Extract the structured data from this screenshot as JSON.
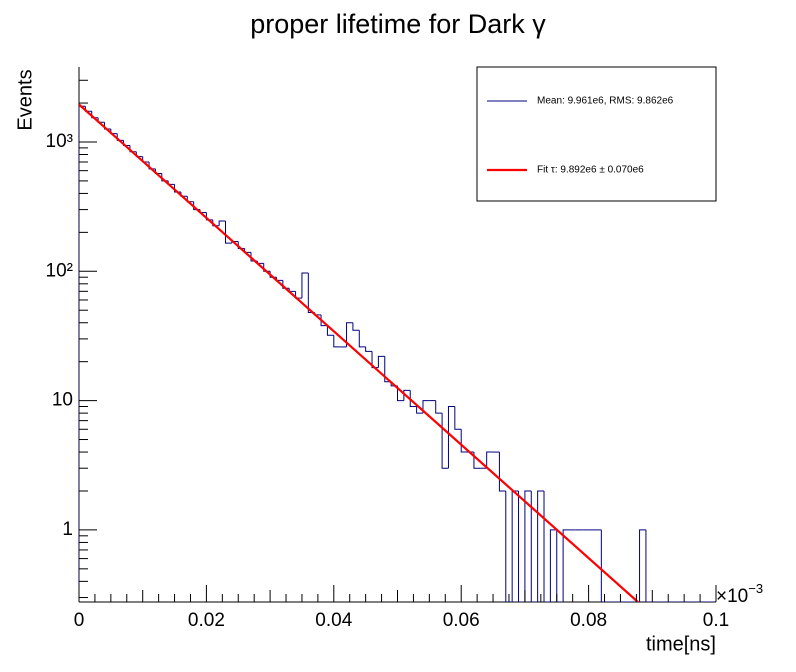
{
  "chart_data": {
    "type": "histogram",
    "title": "proper lifetime for Dark γ",
    "xlabel": "time[ns]",
    "ylabel": "Events",
    "x_multiplier_base": "×10",
    "x_multiplier_exp": "−3",
    "log_y": true,
    "xlim": [
      0,
      0.1
    ],
    "ylim": [
      0.277,
      3800
    ],
    "xticks": [
      0,
      0.02,
      0.04,
      0.06,
      0.08,
      0.1
    ],
    "xminor_ticks": [
      0.0025,
      0.005,
      0.0075,
      0.01,
      0.0125,
      0.015,
      0.0175,
      0.0225,
      0.025,
      0.0275,
      0.03,
      0.0325,
      0.035,
      0.0375,
      0.0425,
      0.045,
      0.0475,
      0.05,
      0.0525,
      0.055,
      0.0575,
      0.0625,
      0.065,
      0.0675,
      0.07,
      0.0725,
      0.075,
      0.0775,
      0.0825,
      0.085,
      0.0875,
      0.09,
      0.0925,
      0.095,
      0.0975
    ],
    "yticks": [
      1,
      10,
      {
        "value": 100,
        "label": "10²"
      },
      {
        "value": 1000,
        "label": "10³"
      }
    ],
    "yminor_ticks": [
      0.3,
      0.4,
      0.5,
      0.6,
      0.7,
      0.8,
      0.9,
      2,
      3,
      4,
      5,
      6,
      7,
      8,
      9,
      20,
      30,
      40,
      50,
      60,
      70,
      80,
      90,
      200,
      300,
      400,
      500,
      600,
      700,
      800,
      900,
      2000,
      3000
    ],
    "bins": [
      0,
      0.001,
      0.002,
      0.003,
      0.004,
      0.005,
      0.006,
      0.007,
      0.008,
      0.009,
      0.01,
      0.011,
      0.012,
      0.013,
      0.014,
      0.015,
      0.016,
      0.017,
      0.018,
      0.019,
      0.02,
      0.021,
      0.022,
      0.023,
      0.024,
      0.025,
      0.026,
      0.027,
      0.028,
      0.029,
      0.03,
      0.031,
      0.032,
      0.033,
      0.034,
      0.035,
      0.036,
      0.037,
      0.038,
      0.039,
      0.04,
      0.041,
      0.042,
      0.043,
      0.044,
      0.045,
      0.046,
      0.047,
      0.048,
      0.049,
      0.05,
      0.051,
      0.052,
      0.053,
      0.054,
      0.055,
      0.056,
      0.057,
      0.058,
      0.059,
      0.06,
      0.061,
      0.062,
      0.063,
      0.064,
      0.065,
      0.066,
      0.067,
      0.068,
      0.069,
      0.07,
      0.071,
      0.072,
      0.073,
      0.074,
      0.075,
      0.076,
      0.077,
      0.078,
      0.079,
      0.08,
      0.081,
      0.082,
      0.083,
      0.084,
      0.085,
      0.086,
      0.087,
      0.088,
      0.089,
      0.09,
      0.091,
      0.092,
      0.093,
      0.094,
      0.095,
      0.096,
      0.097,
      0.098,
      0.099,
      0.1
    ],
    "series": [
      {
        "name": "Mean: 9.961e6, RMS: 9.862e6",
        "color": "#000080",
        "values": [
          1890,
          1730,
          1540,
          1420,
          1260,
          1160,
          1030,
          940,
          840,
          770,
          700,
          620,
          570,
          500,
          470,
          410,
          380,
          345,
          300,
          285,
          250,
          225,
          245,
          165,
          170,
          150,
          140,
          120,
          115,
          100,
          90,
          85,
          74,
          70,
          62,
          97,
          48,
          46,
          38,
          32,
          26,
          26,
          40,
          35,
          26,
          24,
          18,
          22,
          14,
          13,
          10,
          12,
          9,
          8,
          10,
          10,
          8,
          3,
          9,
          6,
          4,
          4,
          3,
          3,
          4,
          4,
          2,
          0,
          2,
          0,
          2,
          0,
          2,
          0,
          1,
          0,
          1,
          1,
          1,
          1,
          1,
          1,
          0,
          0,
          0,
          0,
          0,
          0,
          1,
          0,
          0,
          0,
          0,
          0,
          0,
          0,
          0,
          0,
          0,
          0
        ]
      },
      {
        "name": "Fit τ: 9.892e6 ± 0.070e6",
        "color": "#ff0000",
        "type": "line",
        "x": [
          0,
          0.088
        ],
        "values": [
          1950,
          0.27
        ]
      }
    ]
  }
}
